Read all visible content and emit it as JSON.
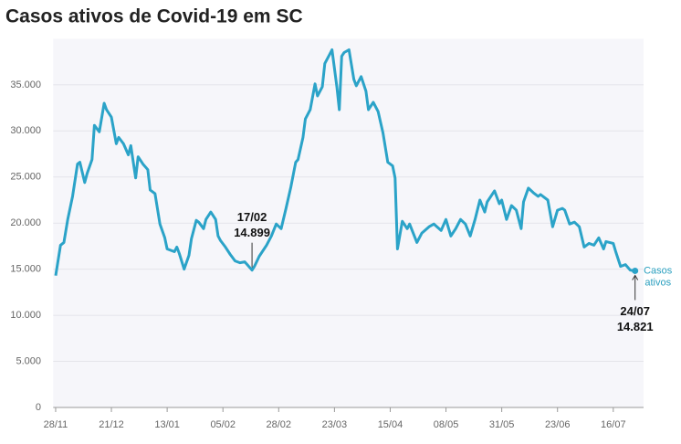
{
  "chart_data": {
    "type": "line",
    "title": "Casos ativos de Covid-19 em SC",
    "x": [
      0,
      2,
      3.4,
      5,
      7,
      9,
      10,
      12,
      13,
      15,
      16,
      18,
      20,
      21,
      23,
      25,
      26,
      28,
      30,
      31,
      33,
      34,
      36,
      38,
      39,
      41,
      43,
      45,
      46,
      49,
      50,
      51,
      53,
      55,
      56,
      58,
      59,
      61,
      62,
      64,
      66,
      67,
      68,
      70,
      72,
      74,
      76,
      78,
      79,
      81,
      82,
      84,
      87,
      89,
      91,
      93,
      95,
      97,
      99,
      100,
      102,
      103,
      105,
      107,
      108,
      110,
      111,
      113,
      114,
      116,
      117,
      118,
      119,
      121,
      123,
      124,
      126,
      128,
      129,
      131,
      133,
      135,
      137,
      139,
      140,
      141,
      143,
      145,
      146,
      149,
      151,
      154,
      156,
      159,
      161,
      163,
      165,
      167,
      169,
      171,
      173,
      175,
      177,
      178,
      181,
      183,
      184,
      186,
      188,
      190,
      192,
      193,
      195,
      197,
      199,
      200,
      203,
      205,
      207,
      209,
      210,
      212,
      214,
      216,
      218,
      220,
      222,
      224,
      226,
      227,
      230,
      231,
      233,
      235,
      237,
      239
    ],
    "series": [
      {
        "name": "Casos ativos",
        "color": "#2ba3c8",
        "values": [
          14300,
          17600,
          17900,
          20400,
          22900,
          26400,
          26600,
          24400,
          25400,
          26900,
          30600,
          29900,
          33000,
          32300,
          31500,
          28600,
          29300,
          28600,
          27400,
          28400,
          24900,
          27200,
          26400,
          25800,
          23600,
          23200,
          19900,
          18400,
          17200,
          16900,
          17400,
          16700,
          15000,
          16500,
          18300,
          20300,
          20100,
          19400,
          20400,
          21200,
          20400,
          18600,
          18100,
          17400,
          16600,
          15900,
          15700,
          15800,
          15500,
          14899,
          15300,
          16400,
          17600,
          18600,
          19900,
          19400,
          21600,
          23900,
          26600,
          26900,
          29300,
          31300,
          32300,
          35100,
          33800,
          34800,
          37300,
          38300,
          38800,
          34800,
          32300,
          38100,
          38500,
          38800,
          35600,
          34900,
          35900,
          34300,
          32300,
          33100,
          32100,
          29800,
          26600,
          26200,
          24900,
          17200,
          20200,
          19400,
          19900,
          17900,
          18900,
          19600,
          19900,
          19200,
          20400,
          18600,
          19400,
          20400,
          19900,
          18600,
          20400,
          22500,
          21200,
          22300,
          23500,
          22100,
          22500,
          20400,
          21900,
          21400,
          19400,
          22300,
          23800,
          23300,
          22900,
          23100,
          22500,
          19600,
          21400,
          21600,
          21400,
          19900,
          20100,
          19600,
          17400,
          17800,
          17600,
          18400,
          17200,
          18000,
          17800,
          16900,
          15300,
          15500,
          14900,
          14821
        ]
      }
    ],
    "xlim": [
      -1,
      242.5
    ],
    "xticks": [
      {
        "value": 0,
        "label": "28/11"
      },
      {
        "value": 23,
        "label": "21/12"
      },
      {
        "value": 46,
        "label": "13/01"
      },
      {
        "value": 69,
        "label": "05/02"
      },
      {
        "value": 92,
        "label": "28/02"
      },
      {
        "value": 115,
        "label": "23/03"
      },
      {
        "value": 138,
        "label": "15/04"
      },
      {
        "value": 161,
        "label": "08/05"
      },
      {
        "value": 184,
        "label": "31/05"
      },
      {
        "value": 207,
        "label": "23/06"
      },
      {
        "value": 230,
        "label": "16/07"
      }
    ],
    "ylim": [
      0,
      40000
    ],
    "yticks": [
      0,
      {
        "value": 5000,
        "label": "5.000"
      },
      {
        "value": 10000,
        "label": "10.000"
      },
      {
        "value": 15000,
        "label": "15.000"
      },
      {
        "value": 20000,
        "label": "20.000"
      },
      {
        "value": 25000,
        "label": "25.000"
      },
      {
        "value": 30000,
        "label": "30.000"
      },
      {
        "value": 35000,
        "label": "35.000"
      }
    ],
    "grid": true,
    "annotations": [
      {
        "x": 81,
        "value": 14899,
        "date": "17/02",
        "value_label": "14.899"
      },
      {
        "x": 239,
        "value": 14821,
        "date": "24/07",
        "value_label": "14.821"
      }
    ]
  }
}
